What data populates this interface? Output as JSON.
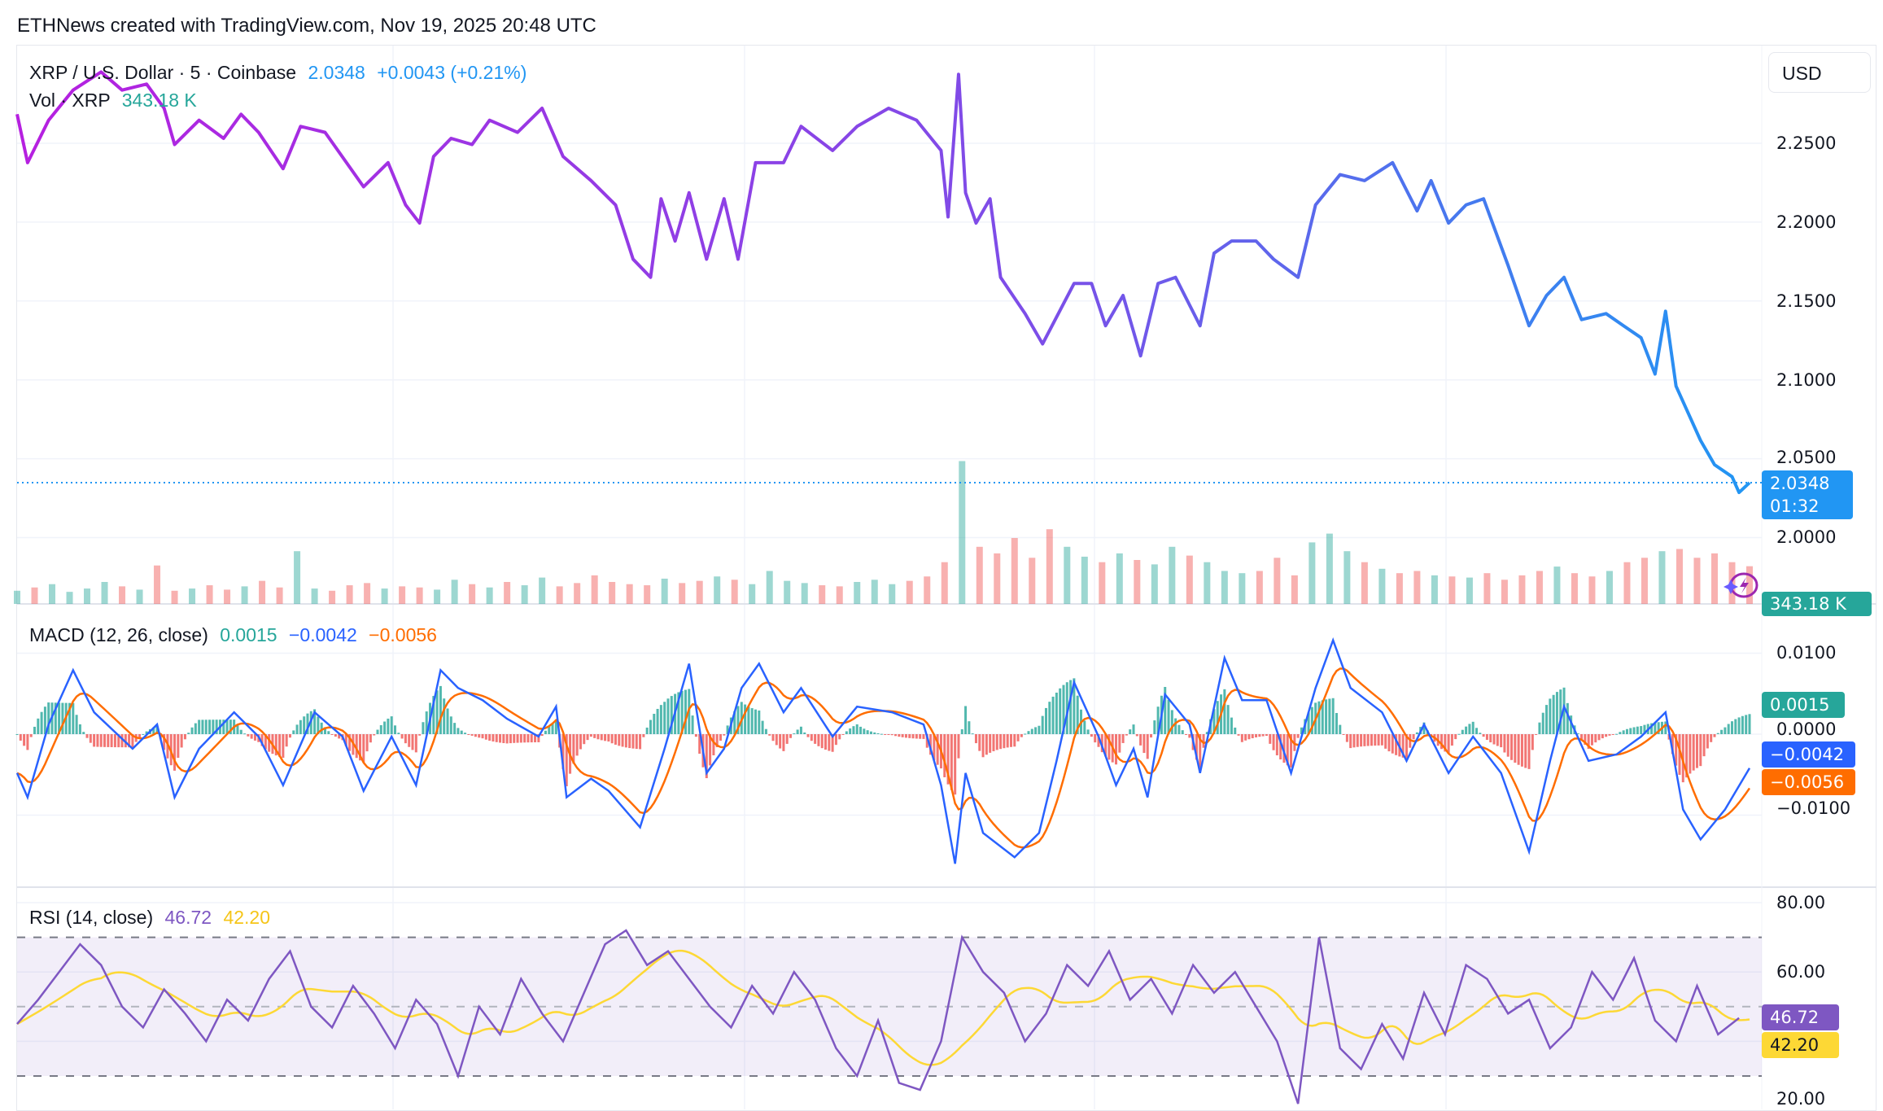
{
  "header": {
    "caption": "ETHNews created with TradingView.com, Nov 19, 2025 20:48 UTC"
  },
  "legend": {
    "symbol": "XRP / U.S. Dollar · 5 · Coinbase",
    "last": "2.0348",
    "change": "+0.0043 (+0.21%)",
    "vol_label": "Vol · XRP",
    "vol_value": "343.18 K",
    "macd_label": "MACD (12, 26, close)",
    "macd_hist": "0.0015",
    "macd_line": "−0.0042",
    "macd_signal": "−0.0056",
    "rsi_label": "RSI (14, close)",
    "rsi_value": "46.72",
    "rsi_ma": "42.20"
  },
  "axis": {
    "currency": "USD",
    "price_ticks": [
      "2.2500",
      "2.2000",
      "2.1500",
      "2.1000",
      "2.0500",
      "2.0000"
    ],
    "macd_ticks": [
      "0.0100",
      "0.0000",
      "−0.0100"
    ],
    "rsi_ticks": [
      "80.00",
      "60.00",
      "20.00"
    ],
    "price_tag": "2.0348",
    "countdown": "01:32",
    "vol_tag": "343.18 K",
    "macd_hist_tag": "0.0015",
    "macd_tag": "−0.0042",
    "signal_tag": "−0.0056",
    "rsi_tag": "46.72",
    "rsi_ma_tag": "42.20"
  },
  "colors": {
    "price_start": "#b620e0",
    "price_mid": "#7b4fe8",
    "price_end": "#2196f3",
    "up": "#26a69a",
    "down": "#ef5350",
    "macd": "#2962ff",
    "signal": "#ff6d00",
    "rsi": "#7e57c2",
    "rsi_ma": "#fdd835"
  },
  "icons": {
    "flash": "lightning-sparkle-icon"
  },
  "chart_data": [
    {
      "type": "line",
      "title": "XRP / U.S. Dollar · 5 · Coinbase",
      "x_unit": "5-minute bar index",
      "ylim": [
        1.98,
        2.31
      ],
      "grid": true,
      "points": [
        [
          0,
          2.2684
        ],
        [
          3,
          2.2377
        ],
        [
          9,
          2.2646
        ],
        [
          16,
          2.2837
        ],
        [
          24,
          2.2952
        ],
        [
          30,
          2.2837
        ],
        [
          37,
          2.2875
        ],
        [
          42,
          2.2722
        ],
        [
          45,
          2.2492
        ],
        [
          52,
          2.2646
        ],
        [
          59,
          2.2531
        ],
        [
          64,
          2.2684
        ],
        [
          69,
          2.2569
        ],
        [
          76,
          2.2339
        ],
        [
          81,
          2.2607
        ],
        [
          88,
          2.2569
        ],
        [
          99,
          2.2224
        ],
        [
          106,
          2.2377
        ],
        [
          111,
          2.2109
        ],
        [
          115,
          2.1994
        ],
        [
          119,
          2.2416
        ],
        [
          124,
          2.2531
        ],
        [
          130,
          2.2492
        ],
        [
          135,
          2.2646
        ],
        [
          143,
          2.2569
        ],
        [
          150,
          2.2722
        ],
        [
          156,
          2.2416
        ],
        [
          164,
          2.2263
        ],
        [
          171,
          2.2109
        ],
        [
          176,
          2.1765
        ],
        [
          181,
          2.165
        ],
        [
          184,
          2.2148
        ],
        [
          188,
          2.188
        ],
        [
          192,
          2.2186
        ],
        [
          197,
          2.1765
        ],
        [
          202,
          2.2148
        ],
        [
          206,
          2.1765
        ],
        [
          211,
          2.2377
        ],
        [
          219,
          2.2377
        ],
        [
          224,
          2.2607
        ],
        [
          233,
          2.2454
        ],
        [
          240,
          2.2607
        ],
        [
          249,
          2.2722
        ],
        [
          257,
          2.2646
        ],
        [
          264,
          2.2454
        ],
        [
          266,
          2.2033
        ],
        [
          269,
          2.2937
        ],
        [
          271,
          2.2186
        ],
        [
          274,
          2.1994
        ],
        [
          278,
          2.2148
        ],
        [
          281,
          2.165
        ],
        [
          288,
          2.142
        ],
        [
          293,
          2.1228
        ],
        [
          302,
          2.1611
        ],
        [
          307,
          2.1611
        ],
        [
          311,
          2.1343
        ],
        [
          316,
          2.1535
        ],
        [
          321,
          2.1152
        ],
        [
          326,
          2.1611
        ],
        [
          331,
          2.165
        ],
        [
          338,
          2.1343
        ],
        [
          342,
          2.1803
        ],
        [
          347,
          2.188
        ],
        [
          354,
          2.188
        ],
        [
          359,
          2.1765
        ],
        [
          366,
          2.165
        ],
        [
          371,
          2.2109
        ],
        [
          378,
          2.2301
        ],
        [
          385,
          2.2263
        ],
        [
          393,
          2.2377
        ],
        [
          400,
          2.2071
        ],
        [
          404,
          2.2263
        ],
        [
          409,
          2.1994
        ],
        [
          414,
          2.2109
        ],
        [
          419,
          2.2148
        ],
        [
          426,
          2.1726
        ],
        [
          432,
          2.1343
        ],
        [
          437,
          2.1535
        ],
        [
          442,
          2.165
        ],
        [
          447,
          2.1382
        ],
        [
          454,
          2.142
        ],
        [
          459,
          2.1343
        ],
        [
          464,
          2.1267
        ],
        [
          468,
          2.1037
        ],
        [
          471,
          2.1435
        ],
        [
          474,
          2.096
        ],
        [
          481,
          2.0616
        ],
        [
          485,
          2.0462
        ],
        [
          490,
          2.0386
        ],
        [
          492,
          2.0286
        ],
        [
          495,
          2.0348
        ]
      ],
      "last_price": 2.0348
    },
    {
      "type": "bar",
      "series_label": "Vol · XRP",
      "unit": "K",
      "bar_step": 5,
      "values": [
        120,
        150,
        180,
        110,
        140,
        200,
        160,
        130,
        350,
        120,
        140,
        170,
        130,
        160,
        210,
        150,
        480,
        140,
        120,
        170,
        190,
        140,
        160,
        150,
        130,
        220,
        180,
        150,
        200,
        170,
        240,
        160,
        190,
        260,
        200,
        180,
        170,
        230,
        190,
        210,
        250,
        220,
        180,
        300,
        210,
        190,
        170,
        160,
        200,
        220,
        180,
        210,
        250,
        380,
        1300,
        520,
        460,
        600,
        420,
        680,
        520,
        430,
        380,
        460,
        400,
        360,
        520,
        440,
        380,
        300,
        280,
        300,
        420,
        260,
        560,
        640,
        480,
        380,
        320,
        280,
        300,
        260,
        250,
        240,
        280,
        220,
        260,
        300,
        340,
        280,
        250,
        300,
        380,
        420,
        480,
        500,
        420,
        460,
        380,
        343.18
      ]
    },
    {
      "type": "line",
      "title": "MACD (12, 26, close)",
      "ylim": [
        -0.018,
        0.014
      ],
      "macd_points": [
        [
          0,
          -0.0048
        ],
        [
          3,
          -0.0078
        ],
        [
          9,
          0.0012
        ],
        [
          16,
          0.0079
        ],
        [
          22,
          0.0027
        ],
        [
          33,
          -0.0018
        ],
        [
          40,
          0.0012
        ],
        [
          45,
          -0.0078
        ],
        [
          52,
          -0.0018
        ],
        [
          62,
          0.0027
        ],
        [
          69,
          -0.0003
        ],
        [
          76,
          -0.0063
        ],
        [
          85,
          0.0027
        ],
        [
          93,
          -0.0003
        ],
        [
          99,
          -0.007
        ],
        [
          107,
          -0.0003
        ],
        [
          114,
          -0.0063
        ],
        [
          121,
          0.0079
        ],
        [
          126,
          0.0057
        ],
        [
          133,
          0.0042
        ],
        [
          140,
          0.0019
        ],
        [
          149,
          -0.0003
        ],
        [
          154,
          0.0034
        ],
        [
          157,
          -0.0078
        ],
        [
          164,
          -0.0055
        ],
        [
          169,
          -0.007
        ],
        [
          178,
          -0.0115
        ],
        [
          185,
          -0.0018
        ],
        [
          192,
          0.0087
        ],
        [
          197,
          -0.0048
        ],
        [
          202,
          -0.0018
        ],
        [
          207,
          0.0057
        ],
        [
          212,
          0.0087
        ],
        [
          219,
          0.0027
        ],
        [
          224,
          0.0057
        ],
        [
          233,
          -0.0003
        ],
        [
          240,
          0.0034
        ],
        [
          250,
          0.0027
        ],
        [
          259,
          0.0012
        ],
        [
          264,
          -0.0063
        ],
        [
          268,
          -0.016
        ],
        [
          271,
          -0.0048
        ],
        [
          276,
          -0.0122
        ],
        [
          285,
          -0.0152
        ],
        [
          292,
          -0.0122
        ],
        [
          297,
          -0.0033
        ],
        [
          302,
          0.0064
        ],
        [
          309,
          -0.0003
        ],
        [
          314,
          -0.0063
        ],
        [
          319,
          -0.0018
        ],
        [
          323,
          -0.0078
        ],
        [
          328,
          0.0049
        ],
        [
          335,
          0.0012
        ],
        [
          338,
          -0.0048
        ],
        [
          345,
          0.0094
        ],
        [
          350,
          0.0042
        ],
        [
          357,
          0.0042
        ],
        [
          364,
          -0.0048
        ],
        [
          371,
          0.0057
        ],
        [
          376,
          0.0116
        ],
        [
          381,
          0.0057
        ],
        [
          390,
          0.0027
        ],
        [
          397,
          -0.0033
        ],
        [
          402,
          0.0012
        ],
        [
          409,
          -0.0048
        ],
        [
          416,
          -0.0003
        ],
        [
          424,
          -0.0048
        ],
        [
          432,
          -0.0145
        ],
        [
          438,
          -0.0033
        ],
        [
          442,
          0.0034
        ],
        [
          449,
          -0.0033
        ],
        [
          457,
          -0.0025
        ],
        [
          464,
          -0.0003
        ],
        [
          471,
          0.0027
        ],
        [
          476,
          -0.0093
        ],
        [
          481,
          -0.013
        ],
        [
          488,
          -0.0093
        ],
        [
          495,
          -0.0042
        ]
      ],
      "last": {
        "histogram": 0.0015,
        "macd": -0.0042,
        "signal": -0.0056
      }
    },
    {
      "type": "line",
      "title": "RSI (14, close)",
      "ylim": [
        20,
        82
      ],
      "bands": [
        30,
        50,
        70
      ],
      "bar_step": 6,
      "values": [
        45,
        52,
        60,
        68,
        62,
        50,
        44,
        55,
        48,
        40,
        52,
        46,
        58,
        66,
        50,
        44,
        56,
        48,
        38,
        52,
        45,
        30,
        50,
        42,
        58,
        48,
        40,
        54,
        68,
        72,
        62,
        66,
        58,
        50,
        44,
        56,
        48,
        60,
        52,
        38,
        30,
        46,
        28,
        26,
        40,
        70,
        60,
        54,
        40,
        48,
        62,
        56,
        66,
        52,
        58,
        48,
        62,
        54,
        60,
        50,
        40,
        22,
        70,
        38,
        32,
        45,
        35,
        54,
        42,
        62,
        58,
        48,
        52,
        38,
        44,
        60,
        52,
        64,
        46,
        40,
        56,
        42,
        46.72
      ],
      "last": {
        "rsi": 46.72,
        "ma": 42.2
      }
    }
  ]
}
